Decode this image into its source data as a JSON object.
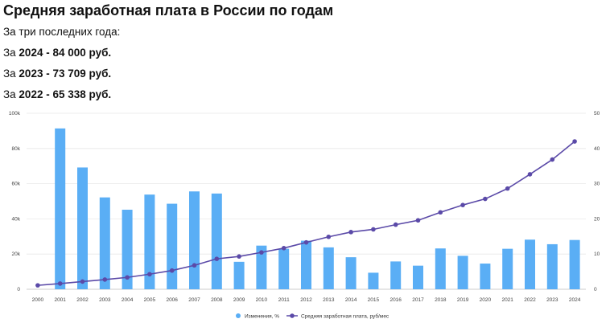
{
  "header": {
    "title": "Средняя заработная плата в России по годам",
    "subtitle": "За три последних года:",
    "stats": [
      {
        "prefix": "За ",
        "year": "2024",
        "sep": " - ",
        "value": "84 000",
        "unit": " руб."
      },
      {
        "prefix": "За ",
        "year": "2023",
        "sep": " - ",
        "value": "73 709",
        "unit": " руб."
      },
      {
        "prefix": "За ",
        "year": "2022",
        "sep": " - ",
        "value": "65 338",
        "unit": " руб."
      }
    ]
  },
  "colors": {
    "bar": "#5aaef5",
    "line": "#5b4aa8",
    "grid": "#e8e8e8"
  },
  "chart_data": {
    "type": "bar+line",
    "categories": [
      "2000",
      "2001",
      "2002",
      "2003",
      "2004",
      "2005",
      "2006",
      "2007",
      "2008",
      "2009",
      "2010",
      "2011",
      "2012",
      "2013",
      "2014",
      "2015",
      "2016",
      "2017",
      "2018",
      "2019",
      "2020",
      "2021",
      "2022",
      "2023",
      "2024"
    ],
    "left_axis": {
      "ylim": [
        0,
        100000
      ],
      "ticks": [
        "0",
        "20k",
        "40k",
        "60k",
        "80k",
        "100k"
      ]
    },
    "right_axis": {
      "ylim": [
        0,
        50
      ],
      "ticks": [
        "0",
        "10",
        "20",
        "30",
        "40",
        "50"
      ]
    },
    "series": [
      {
        "name": "Изменения, %",
        "kind": "bar",
        "axis": "right",
        "values": [
          null,
          45.7,
          34.6,
          26.1,
          22.6,
          26.9,
          24.3,
          27.8,
          27.2,
          7.8,
          12.4,
          11.5,
          13.8,
          11.9,
          9.1,
          4.7,
          7.9,
          6.7,
          11.6,
          9.5,
          7.3,
          11.5,
          14.1,
          12.8,
          14.0
        ]
      },
      {
        "name": "Средняя заработная плата, руб/мес",
        "kind": "line",
        "axis": "left",
        "values": [
          2223,
          3240,
          4360,
          5499,
          6740,
          8555,
          10634,
          13593,
          17290,
          18638,
          20952,
          23369,
          26629,
          29792,
          32495,
          34030,
          36709,
          39167,
          43724,
          47867,
          51344,
          57244,
          65338,
          73709,
          84000
        ]
      }
    ]
  }
}
